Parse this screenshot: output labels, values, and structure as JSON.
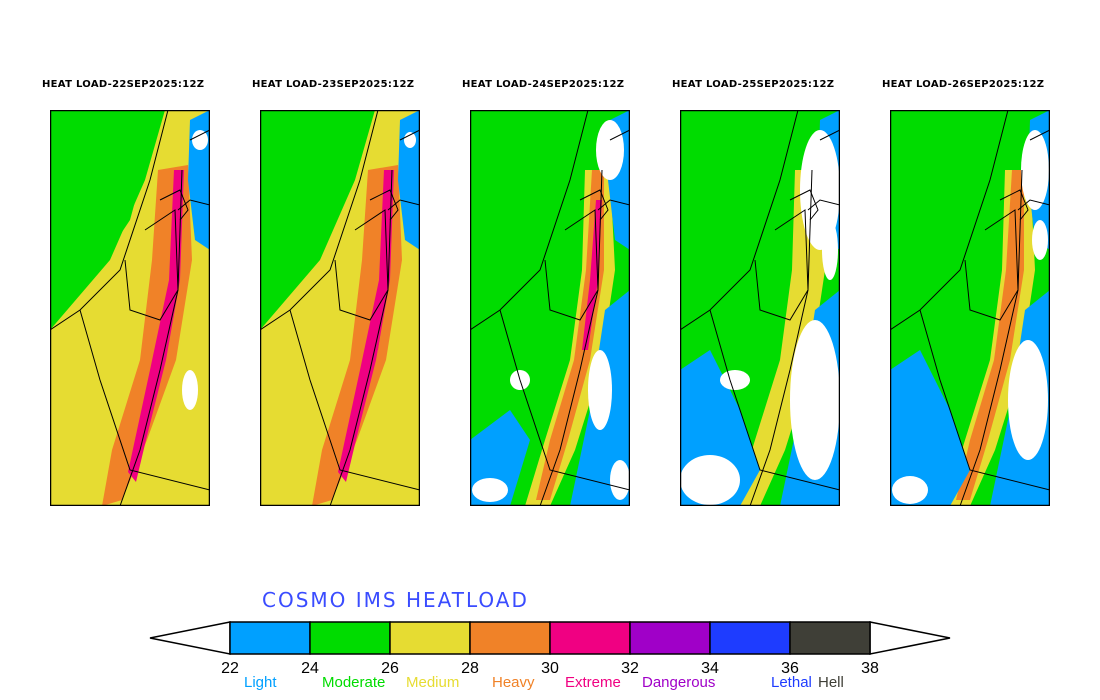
{
  "panels": [
    {
      "title": "HEAT LOAD-22SEP2025:12Z"
    },
    {
      "title": "HEAT LOAD-23SEP2025:12Z"
    },
    {
      "title": "HEAT LOAD-24SEP2025:12Z"
    },
    {
      "title": "HEAT LOAD-25SEP2025:12Z"
    },
    {
      "title": "HEAT LOAD-26SEP2025:12Z"
    }
  ],
  "legend": {
    "title": "COSMO IMS HEATLOAD",
    "ticks": [
      "22",
      "24",
      "26",
      "28",
      "30",
      "32",
      "34",
      "36",
      "38"
    ],
    "categories": [
      {
        "label": "Light",
        "color": "#00a0ff"
      },
      {
        "label": "Moderate",
        "color": "#00dc00"
      },
      {
        "label": "Medium",
        "color": "#e6dc32"
      },
      {
        "label": "Heavy",
        "color": "#f08228"
      },
      {
        "label": "Extreme",
        "color": "#f00082"
      },
      {
        "label": "Dangerous",
        "color": "#a000c8"
      },
      {
        "label": "Lethal",
        "color": "#1e3cff"
      },
      {
        "label": "Hell",
        "color": "#3f3f37"
      }
    ]
  }
}
